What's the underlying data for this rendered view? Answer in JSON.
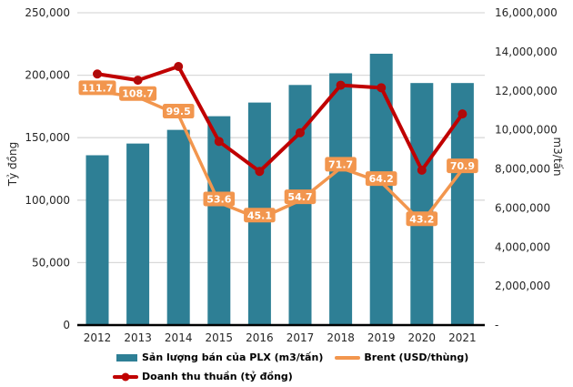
{
  "chart_data": {
    "type": "combo-bar-line",
    "categories": [
      "2012",
      "2013",
      "2014",
      "2015",
      "2016",
      "2017",
      "2018",
      "2019",
      "2020",
      "2021"
    ],
    "series": [
      {
        "name": "Sản lượng bán của PLX (m3/tấn)",
        "type": "bar",
        "axis": "right",
        "color": "#2E7F95",
        "values": [
          8700000,
          9300000,
          10000000,
          10700000,
          11400000,
          12300000,
          12900000,
          13900000,
          12400000,
          12400000
        ]
      },
      {
        "name": "Brent (USD/thùng)",
        "type": "line",
        "axis": "hidden-brent",
        "color": "#F2964E",
        "values": [
          111.7,
          108.7,
          99.5,
          53.6,
          45.1,
          54.7,
          71.7,
          64.2,
          43.2,
          70.9
        ],
        "data_labels": [
          "111.7",
          "108.7",
          "99.5",
          "53.6",
          "45.1",
          "54.7",
          "71.7",
          "64.2",
          "43.2",
          "70.9"
        ],
        "label_text_color": "#ffffff"
      },
      {
        "name": "Doanh thu thuần (tỷ đồng)",
        "type": "line",
        "axis": "left",
        "color": "#C00000",
        "marker_color": "#AD0B0B",
        "values": [
          201000,
          196000,
          207000,
          147000,
          123000,
          154000,
          192000,
          190000,
          124000,
          169000
        ]
      }
    ],
    "left_axis": {
      "title": "Tỷ đồng",
      "min": 0,
      "max": 250000,
      "tick_labels": [
        "0",
        "50,000",
        "100,000",
        "150,000",
        "200,000",
        "250,000"
      ]
    },
    "right_axis": {
      "title": "m3/tấn",
      "min": 0,
      "max": 16000000,
      "tick_labels": [
        "-",
        "2,000,000",
        "4,000,000",
        "6,000,000",
        "8,000,000",
        "10,000,000",
        "12,000,000",
        "14,000,000",
        "16,000,000"
      ]
    },
    "grid": "horizontal",
    "gridline_color": "#D9D9D9",
    "axis_line_color": "#000000",
    "tick_text_color": "#262626",
    "legend_position": "bottom"
  }
}
